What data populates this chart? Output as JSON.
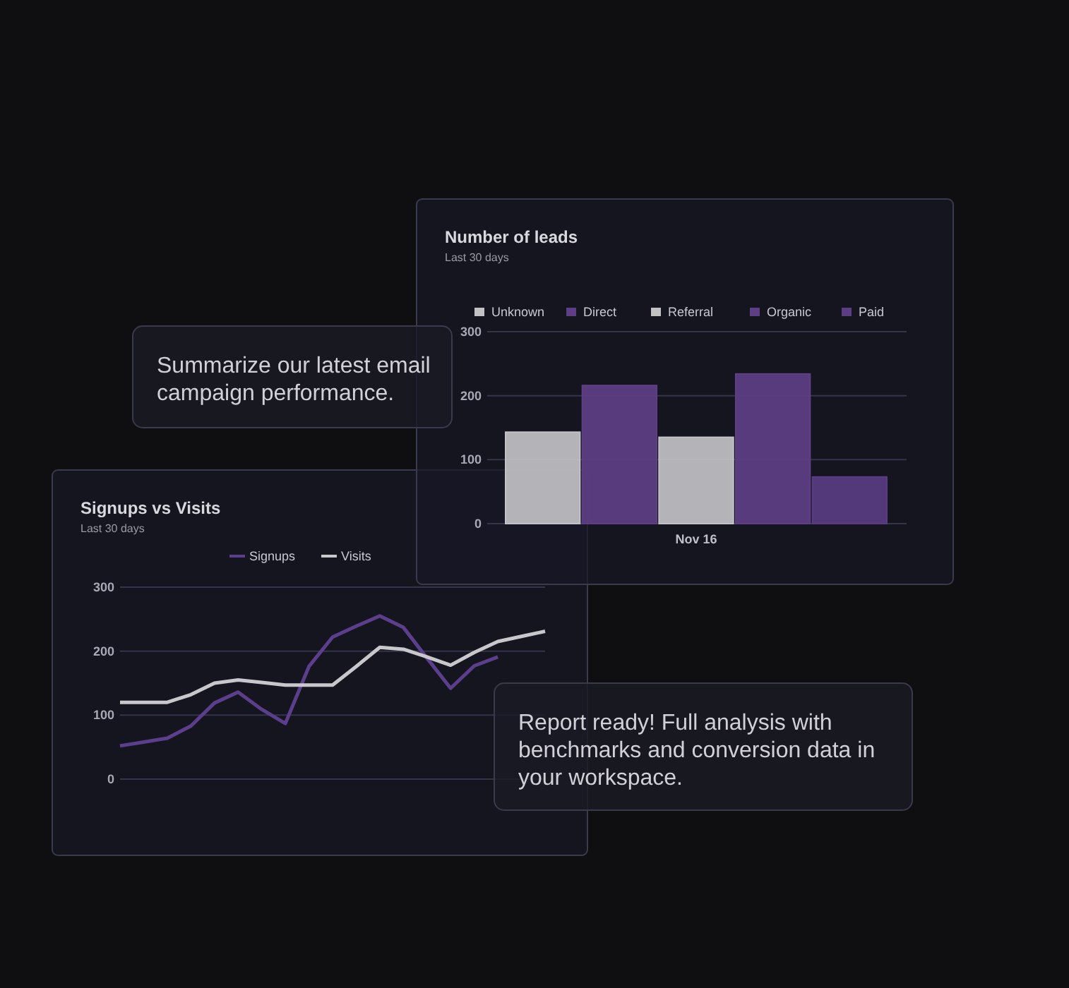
{
  "chart_data": [
    {
      "type": "bar",
      "title": "Number of leads",
      "subtitle": "Last 30 days",
      "categories": [
        "Nov 16"
      ],
      "series": [
        {
          "name": "Unknown",
          "color": "#c2c2c6",
          "values": [
            143
          ]
        },
        {
          "name": "Direct",
          "color": "#5e3f86",
          "values": [
            216
          ]
        },
        {
          "name": "Referral",
          "color": "#c2c2c6",
          "values": [
            135
          ]
        },
        {
          "name": "Organic",
          "color": "#5e3f86",
          "values": [
            234
          ]
        },
        {
          "name": "Paid",
          "color": "#5a3d82",
          "values": [
            73
          ]
        }
      ],
      "ylim": [
        0,
        300
      ],
      "yticks": [
        0,
        100,
        200,
        300
      ],
      "grid": "y",
      "legend": "top"
    },
    {
      "type": "line",
      "title": "Signups vs Visits",
      "subtitle": "Last 30 days",
      "categories": [
        null,
        null,
        null,
        null,
        null,
        null,
        null,
        null,
        null,
        null,
        null,
        null,
        null,
        null,
        null,
        null,
        null,
        null,
        null
      ],
      "ylim": [
        0,
        300
      ],
      "yticks": [
        0,
        100,
        200,
        300
      ],
      "grid": "y",
      "legend": "top",
      "series": [
        {
          "name": "Signups",
          "color": "#5c3f8c",
          "values": [
            52,
            58,
            64,
            83,
            119,
            136,
            109,
            87,
            176,
            222,
            239,
            255,
            237,
            189,
            142,
            177,
            191,
            null,
            null
          ]
        },
        {
          "name": "Visits",
          "color": "#c8c8cc",
          "values": [
            120,
            120,
            120,
            132,
            150,
            155,
            151,
            147,
            147,
            147,
            176,
            206,
            203,
            191,
            178,
            198,
            215,
            223,
            231
          ]
        }
      ]
    },
    {
      "type": "other",
      "annotations": [
        "Summarize our latest email campaign performance.",
        "Report ready! Full analysis with benchmarks and conversion data in your workspace."
      ]
    }
  ]
}
